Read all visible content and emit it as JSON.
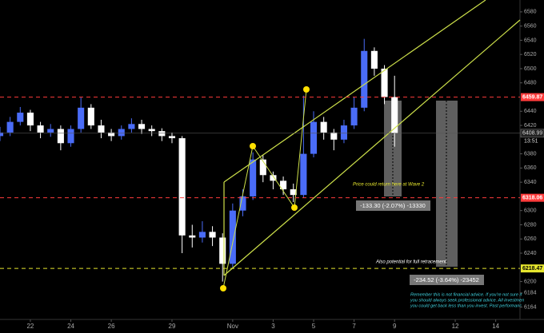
{
  "chart_data": {
    "type": "candlestick",
    "x": [
      -1.5,
      -1,
      -0.5,
      0,
      0.5,
      1,
      1.5,
      2,
      2.5,
      3,
      3.5,
      4,
      4.5,
      5,
      5.5,
      6,
      6.5,
      7,
      7.5,
      8,
      8.5,
      9,
      9.5,
      10,
      10.5,
      11,
      11.5,
      12,
      12.5,
      13,
      13.5,
      14,
      14.5,
      15,
      15.5,
      16,
      16.5,
      17,
      17.5,
      18
    ],
    "open": [
      6405,
      6410,
      6425,
      6438,
      6420,
      6410,
      6415,
      6395,
      6415,
      6445,
      6420,
      6410,
      6405,
      6415,
      6422,
      6415,
      6412,
      6405,
      6402,
      6265,
      6262,
      6270,
      6262,
      6225,
      6300,
      6320,
      6372,
      6350,
      6342,
      6330,
      6322,
      6380,
      6425,
      6410,
      6400,
      6420,
      6445,
      6525,
      6500,
      6460
    ],
    "high": [
      6418,
      6432,
      6446,
      6442,
      6425,
      6422,
      6420,
      6420,
      6460,
      6450,
      6428,
      6415,
      6420,
      6430,
      6428,
      6420,
      6416,
      6410,
      6405,
      6280,
      6285,
      6278,
      6268,
      6310,
      6330,
      6382,
      6378,
      6355,
      6348,
      6338,
      6462,
      6440,
      6432,
      6415,
      6428,
      6460,
      6542,
      6530,
      6505,
      6490
    ],
    "low": [
      6398,
      6405,
      6420,
      6412,
      6402,
      6404,
      6385,
      6390,
      6410,
      6415,
      6402,
      6398,
      6400,
      6410,
      6408,
      6405,
      6398,
      6395,
      6240,
      6248,
      6255,
      6250,
      6200,
      6220,
      6292,
      6315,
      6340,
      6330,
      6322,
      6312,
      6318,
      6375,
      6400,
      6385,
      6395,
      6415,
      6440,
      6490,
      6450,
      6390
    ],
    "close": [
      6410,
      6425,
      6438,
      6420,
      6410,
      6415,
      6395,
      6415,
      6445,
      6420,
      6410,
      6405,
      6415,
      6422,
      6415,
      6412,
      6405,
      6402,
      6265,
      6262,
      6270,
      6262,
      6225,
      6300,
      6320,
      6372,
      6350,
      6342,
      6330,
      6322,
      6380,
      6425,
      6410,
      6400,
      6420,
      6445,
      6525,
      6500,
      6460,
      6409
    ],
    "up_color": "#4a6cf7",
    "down_color": "#ffffff",
    "xlim": [
      -1.5,
      24.2
    ],
    "ylim": [
      6150,
      6590
    ],
    "xticks": [
      {
        "value": 0,
        "label": "22"
      },
      {
        "value": 2,
        "label": "24"
      },
      {
        "value": 4,
        "label": "26"
      },
      {
        "value": 7,
        "label": "29"
      },
      {
        "value": 10,
        "label": "Nov"
      },
      {
        "value": 12,
        "label": "3"
      },
      {
        "value": 14,
        "label": "5"
      },
      {
        "value": 16,
        "label": "7"
      },
      {
        "value": 18,
        "label": "9"
      },
      {
        "value": 21,
        "label": "12"
      },
      {
        "value": 23,
        "label": "14"
      }
    ],
    "yticks": [
      6580,
      6560,
      6540,
      6520,
      6500,
      6480,
      6440,
      6420,
      6380,
      6360,
      6340,
      6300,
      6280,
      6260,
      6240,
      6200,
      6184,
      6164
    ],
    "grid": false,
    "levels": [
      {
        "value": 6459.87,
        "color": "#ff3b3b"
      },
      {
        "value": 6318.06,
        "color": "#ff3b3b"
      },
      {
        "value": 6218.47,
        "color": "#e6e62e"
      }
    ],
    "last_price": 6408.99,
    "countdown": "13:51",
    "annotations": {
      "wave2": "Price could return here at Wave 2",
      "measure1": "-133.30 (-2.07%) -13330",
      "full": "Also potential for full retracement",
      "measure2": "-234.52 (-3.64%) -23452",
      "disclaimer": [
        "Remember this is not financial advice. If you're not sure if",
        "you should always seek professional advice. All investmen",
        "you could get back less than you invest. Past performanc"
      ]
    }
  }
}
